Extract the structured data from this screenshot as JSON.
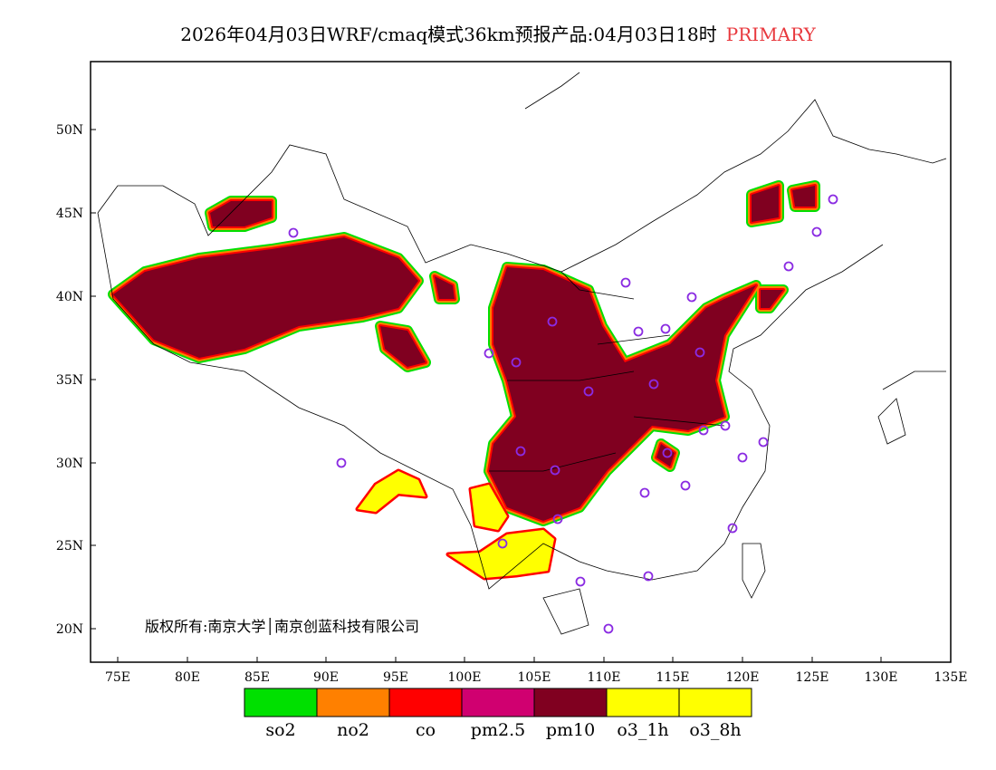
{
  "title": {
    "main": "2026年04月03日WRF/cmaq模式36km预报产品:04月03日18时",
    "tag": "PRIMARY",
    "tag_color": "#e8383d"
  },
  "map": {
    "lon_ticks": [
      "75E",
      "80E",
      "85E",
      "90E",
      "95E",
      "100E",
      "105E",
      "110E",
      "115E",
      "120E",
      "125E",
      "130E",
      "135E"
    ],
    "lat_ticks": [
      "50N",
      "45N",
      "40N",
      "35N",
      "30N",
      "25N",
      "20N"
    ],
    "copyright": "版权所有:南京大学│南京创蓝科技有限公司"
  },
  "legend": {
    "items": [
      {
        "label": "so2",
        "color": "#00e000"
      },
      {
        "label": "no2",
        "color": "#ff8000"
      },
      {
        "label": "co",
        "color": "#ff0000"
      },
      {
        "label": "pm2.5",
        "color": "#d00070"
      },
      {
        "label": "pm10",
        "color": "#800020"
      },
      {
        "label": "o3_1h",
        "color": "#ffff00"
      },
      {
        "label": "o3_8h",
        "color": "#ffff00"
      }
    ]
  }
}
